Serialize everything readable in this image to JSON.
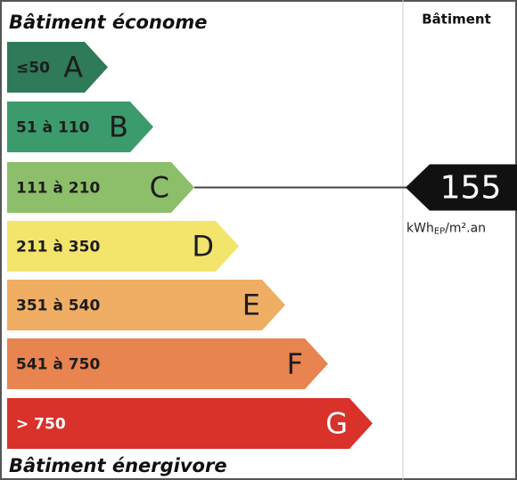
{
  "header": {
    "top": "Bâtiment économe",
    "bottom": "Bâtiment énergivore",
    "column": "Bâtiment"
  },
  "classes": [
    {
      "range": "≤50",
      "letter": "A",
      "color": "#2f7a58",
      "text": "#1d1d1d"
    },
    {
      "range": "51 à 110",
      "letter": "B",
      "color": "#3c9b6c",
      "text": "#1d1d1d"
    },
    {
      "range": "111 à 210",
      "letter": "C",
      "color": "#8dbf6a",
      "text": "#1d1d1d"
    },
    {
      "range": "211 à 350",
      "letter": "D",
      "color": "#f3e46c",
      "text": "#1d1d1d"
    },
    {
      "range": "351 à 540",
      "letter": "E",
      "color": "#efae63",
      "text": "#1d1d1d"
    },
    {
      "range": "541 à 750",
      "letter": "F",
      "color": "#e8844f",
      "text": "#1d1d1d"
    },
    {
      "range": "> 750",
      "letter": "G",
      "color": "#d8322b",
      "text": "#ffffff"
    }
  ],
  "indicator": {
    "value": 155,
    "class_index": 2,
    "unit": {
      "main": "kWh",
      "sub": "EP",
      "rest": "/m².an"
    }
  }
}
